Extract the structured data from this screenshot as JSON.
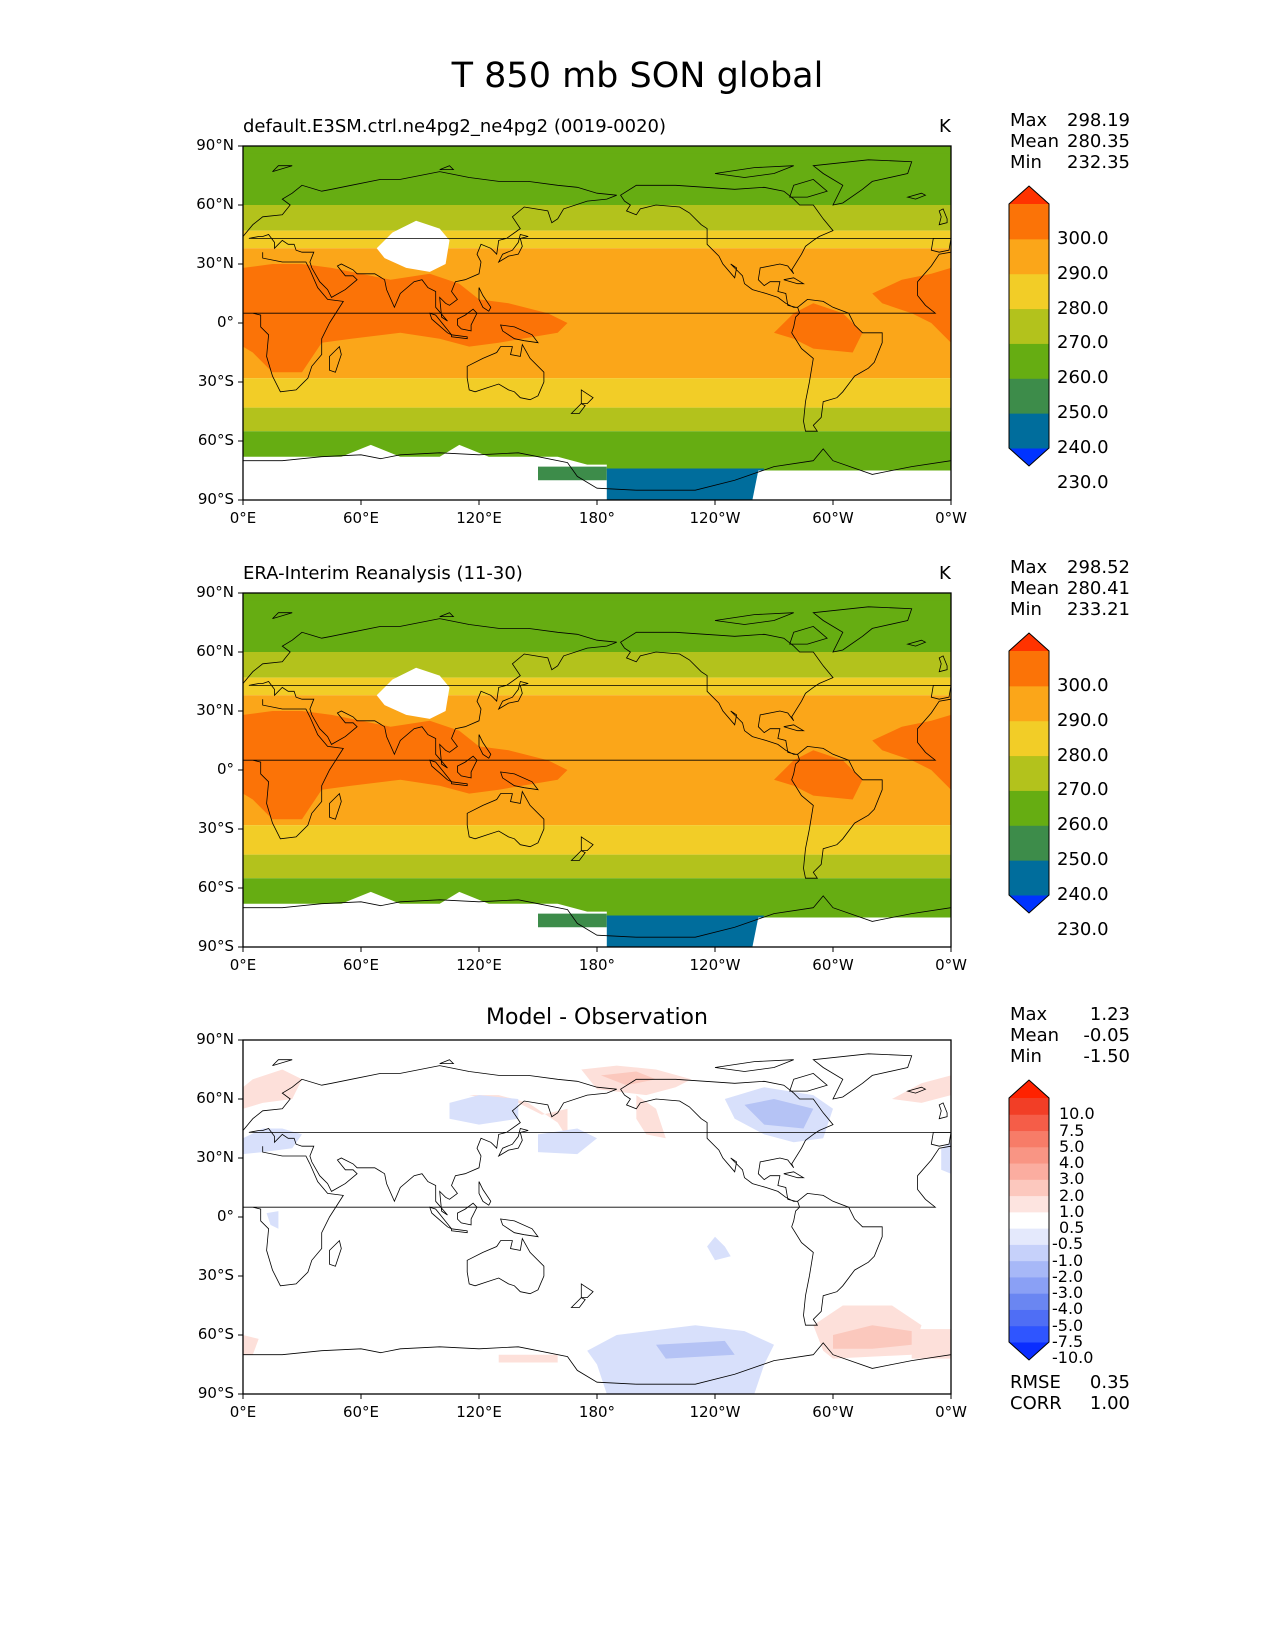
{
  "title": "T 850 mb SON global",
  "panels": [
    {
      "id": "model",
      "title": "default.E3SM.ctrl.ne4pg2_ne4pg2 (0019-0020)",
      "units": "K",
      "stats": {
        "max_label": "Max",
        "max": "298.19",
        "mean_label": "Mean",
        "mean": "280.35",
        "min_label": "Min",
        "min": "232.35"
      },
      "colorbar": {
        "labels": [
          "300.0",
          "290.0",
          "280.0",
          "270.0",
          "260.0",
          "250.0",
          "240.0",
          "230.0"
        ],
        "colors": [
          "#0033ff",
          "#006d9c",
          "#3d8c4a",
          "#66ad12",
          "#b3c21c",
          "#f2cd27",
          "#fba619",
          "#fb7307",
          "#ff3300"
        ]
      }
    },
    {
      "id": "obs",
      "title": "ERA-Interim Reanalysis (11-30)",
      "units": "K",
      "stats": {
        "max_label": "Max",
        "max": "298.52",
        "mean_label": "Mean",
        "mean": "280.41",
        "min_label": "Min",
        "min": "233.21"
      },
      "colorbar": {
        "labels": [
          "300.0",
          "290.0",
          "280.0",
          "270.0",
          "260.0",
          "250.0",
          "240.0",
          "230.0"
        ],
        "colors": [
          "#0033ff",
          "#006d9c",
          "#3d8c4a",
          "#66ad12",
          "#b3c21c",
          "#f2cd27",
          "#fba619",
          "#fb7307",
          "#ff3300"
        ]
      }
    },
    {
      "id": "diff",
      "title": "Model - Observation",
      "units": "",
      "stats": {
        "max_label": "Max",
        "max": "1.23",
        "mean_label": "Mean",
        "mean": "-0.05",
        "min_label": "Min",
        "min": "-1.50"
      },
      "metrics": {
        "rmse_label": "RMSE",
        "rmse": "0.35",
        "corr_label": "CORR",
        "corr": "1.00"
      },
      "colorbar": {
        "labels": [
          "10.0",
          "7.5",
          "5.0",
          "4.0",
          "3.0",
          "2.0",
          "1.0",
          "0.5",
          "-0.5",
          "-1.0",
          "-2.0",
          "-3.0",
          "-4.0",
          "-5.0",
          "-7.5",
          "-10.0"
        ],
        "colors": [
          "#0a2dff",
          "#2f55ff",
          "#4f6ef5",
          "#6a86f2",
          "#8aa0f5",
          "#a7b8f7",
          "#c6d1fa",
          "#e4e9fc",
          "#ffffff",
          "#fde4e0",
          "#fcc8be",
          "#fbada0",
          "#f99584",
          "#f77c68",
          "#f55d48",
          "#f23e26",
          "#ff2200"
        ]
      }
    }
  ],
  "axes": {
    "lat_ticks": [
      "90°N",
      "60°N",
      "30°N",
      "0°",
      "30°S",
      "60°S",
      "90°S"
    ],
    "lon_ticks": [
      "0°E",
      "60°E",
      "120°E",
      "180°",
      "120°W",
      "60°W",
      "0°W"
    ]
  },
  "palette": {
    "band_colors": [
      "#006d9c",
      "#3d8c4a",
      "#66ad12",
      "#b3c21c",
      "#f2cd27",
      "#fba619",
      "#fb7307"
    ],
    "diff_blue": "#d8e0fb",
    "diff_blue_dark": "#b5c3f5",
    "diff_red": "#fde0da",
    "diff_red_dark": "#fbc8bd"
  }
}
